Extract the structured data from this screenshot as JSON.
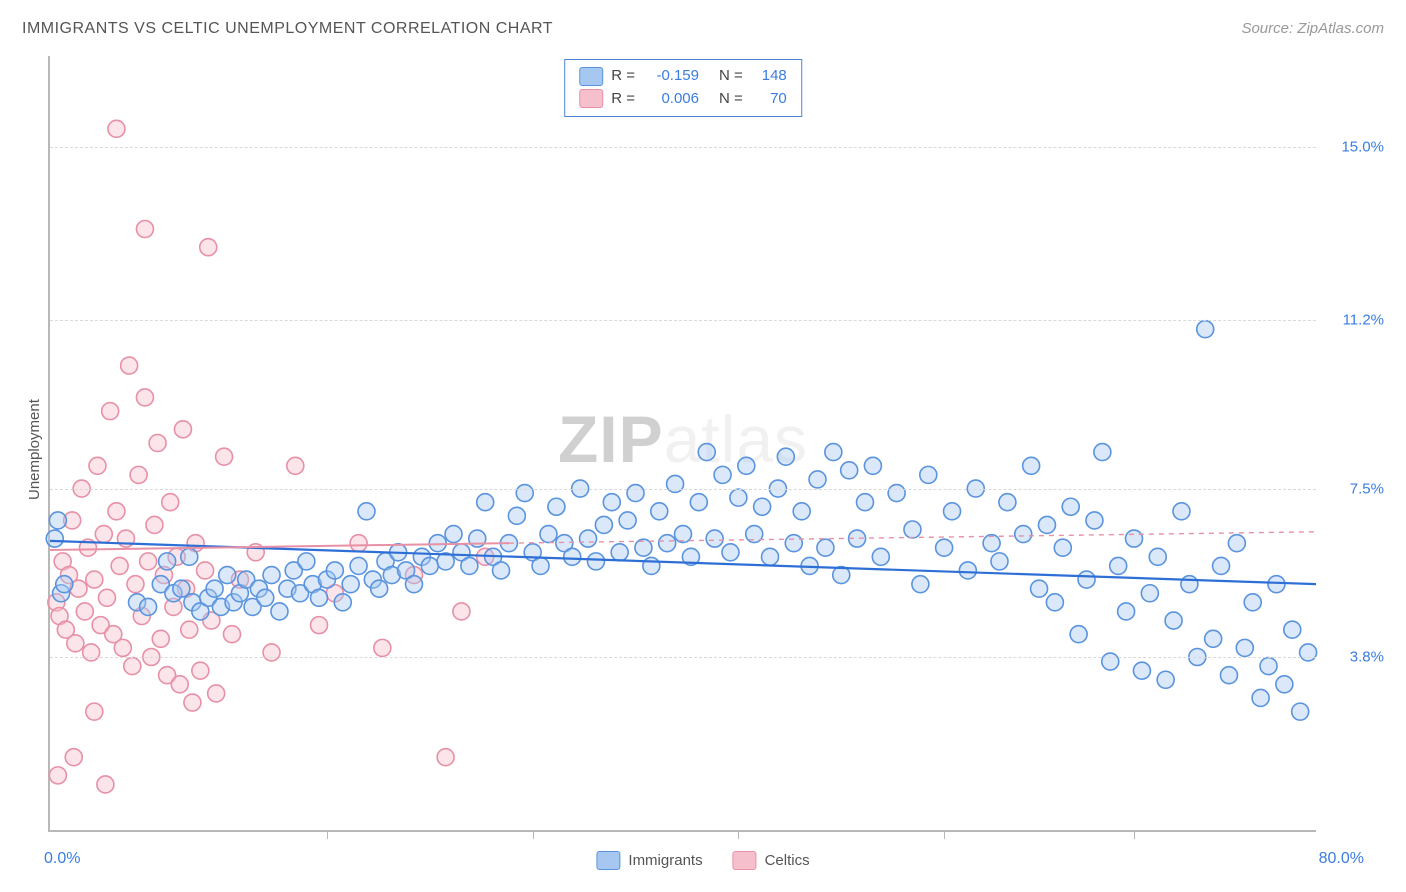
{
  "title": "IMMIGRANTS VS CELTIC UNEMPLOYMENT CORRELATION CHART",
  "source": "Source: ZipAtlas.com",
  "ylabel": "Unemployment",
  "watermark_zip": "ZIP",
  "watermark_atlas": "atlas",
  "chart": {
    "type": "scatter",
    "background_color": "#ffffff",
    "grid_color": "#d9d9d9",
    "axis_color": "#b8b8b8",
    "marker_radius": 8.5,
    "marker_stroke_width": 1.6,
    "marker_fill_opacity": 0.42,
    "xlim": [
      0,
      80
    ],
    "ylim": [
      0,
      17
    ],
    "x_min_label": "0.0%",
    "x_max_label": "80.0%",
    "xtick_values": [
      17.5,
      30.5,
      43.5,
      56.5,
      68.5
    ],
    "yticks": [
      {
        "v": 15.0,
        "label": "15.0%"
      },
      {
        "v": 11.2,
        "label": "11.2%"
      },
      {
        "v": 7.5,
        "label": "7.5%"
      },
      {
        "v": 3.8,
        "label": "3.8%"
      }
    ],
    "series": [
      {
        "name": "Immigrants",
        "color_fill": "#a6c8f0",
        "color_stroke": "#5b94de",
        "R": "-0.159",
        "N": "148",
        "trend": {
          "x1": 0,
          "y1": 6.35,
          "x2": 80,
          "y2": 5.4,
          "color": "#2e6fd6",
          "width": 2.2,
          "dash": ""
        },
        "points": [
          [
            0.3,
            6.4
          ],
          [
            0.5,
            6.8
          ],
          [
            0.7,
            5.2
          ],
          [
            0.9,
            5.4
          ],
          [
            5.5,
            5.0
          ],
          [
            6.2,
            4.9
          ],
          [
            7.0,
            5.4
          ],
          [
            7.4,
            5.9
          ],
          [
            7.8,
            5.2
          ],
          [
            8.3,
            5.3
          ],
          [
            8.8,
            6.0
          ],
          [
            9.0,
            5.0
          ],
          [
            9.5,
            4.8
          ],
          [
            10.0,
            5.1
          ],
          [
            10.4,
            5.3
          ],
          [
            10.8,
            4.9
          ],
          [
            11.2,
            5.6
          ],
          [
            11.6,
            5.0
          ],
          [
            12.0,
            5.2
          ],
          [
            12.4,
            5.5
          ],
          [
            12.8,
            4.9
          ],
          [
            13.2,
            5.3
          ],
          [
            13.6,
            5.1
          ],
          [
            14.0,
            5.6
          ],
          [
            14.5,
            4.8
          ],
          [
            15.0,
            5.3
          ],
          [
            15.4,
            5.7
          ],
          [
            15.8,
            5.2
          ],
          [
            16.2,
            5.9
          ],
          [
            16.6,
            5.4
          ],
          [
            17.0,
            5.1
          ],
          [
            17.5,
            5.5
          ],
          [
            18.0,
            5.7
          ],
          [
            18.5,
            5.0
          ],
          [
            19.0,
            5.4
          ],
          [
            19.5,
            5.8
          ],
          [
            20.0,
            7.0
          ],
          [
            20.4,
            5.5
          ],
          [
            20.8,
            5.3
          ],
          [
            21.2,
            5.9
          ],
          [
            21.6,
            5.6
          ],
          [
            22.0,
            6.1
          ],
          [
            22.5,
            5.7
          ],
          [
            23.0,
            5.4
          ],
          [
            23.5,
            6.0
          ],
          [
            24.0,
            5.8
          ],
          [
            24.5,
            6.3
          ],
          [
            25.0,
            5.9
          ],
          [
            25.5,
            6.5
          ],
          [
            26.0,
            6.1
          ],
          [
            26.5,
            5.8
          ],
          [
            27.0,
            6.4
          ],
          [
            27.5,
            7.2
          ],
          [
            28.0,
            6.0
          ],
          [
            28.5,
            5.7
          ],
          [
            29.0,
            6.3
          ],
          [
            29.5,
            6.9
          ],
          [
            30.0,
            7.4
          ],
          [
            30.5,
            6.1
          ],
          [
            31.0,
            5.8
          ],
          [
            31.5,
            6.5
          ],
          [
            32.0,
            7.1
          ],
          [
            32.5,
            6.3
          ],
          [
            33.0,
            6.0
          ],
          [
            33.5,
            7.5
          ],
          [
            34.0,
            6.4
          ],
          [
            34.5,
            5.9
          ],
          [
            35.0,
            6.7
          ],
          [
            35.5,
            7.2
          ],
          [
            36.0,
            6.1
          ],
          [
            36.5,
            6.8
          ],
          [
            37.0,
            7.4
          ],
          [
            37.5,
            6.2
          ],
          [
            38.0,
            5.8
          ],
          [
            38.5,
            7.0
          ],
          [
            39.0,
            6.3
          ],
          [
            39.5,
            7.6
          ],
          [
            40.0,
            6.5
          ],
          [
            40.5,
            6.0
          ],
          [
            41.0,
            7.2
          ],
          [
            41.5,
            8.3
          ],
          [
            42.0,
            6.4
          ],
          [
            42.5,
            7.8
          ],
          [
            43.0,
            6.1
          ],
          [
            43.5,
            7.3
          ],
          [
            44.0,
            8.0
          ],
          [
            44.5,
            6.5
          ],
          [
            45.0,
            7.1
          ],
          [
            45.5,
            6.0
          ],
          [
            46.0,
            7.5
          ],
          [
            46.5,
            8.2
          ],
          [
            47.0,
            6.3
          ],
          [
            47.5,
            7.0
          ],
          [
            48.0,
            5.8
          ],
          [
            48.5,
            7.7
          ],
          [
            49.0,
            6.2
          ],
          [
            49.5,
            8.3
          ],
          [
            50.0,
            5.6
          ],
          [
            50.5,
            7.9
          ],
          [
            51.0,
            6.4
          ],
          [
            51.5,
            7.2
          ],
          [
            52.0,
            8.0
          ],
          [
            52.5,
            6.0
          ],
          [
            53.5,
            7.4
          ],
          [
            54.5,
            6.6
          ],
          [
            55.0,
            5.4
          ],
          [
            55.5,
            7.8
          ],
          [
            56.5,
            6.2
          ],
          [
            57.0,
            7.0
          ],
          [
            58.0,
            5.7
          ],
          [
            58.5,
            7.5
          ],
          [
            59.5,
            6.3
          ],
          [
            60.0,
            5.9
          ],
          [
            60.5,
            7.2
          ],
          [
            61.5,
            6.5
          ],
          [
            62.0,
            8.0
          ],
          [
            62.5,
            5.3
          ],
          [
            63.0,
            6.7
          ],
          [
            63.5,
            5.0
          ],
          [
            64.0,
            6.2
          ],
          [
            64.5,
            7.1
          ],
          [
            65.0,
            4.3
          ],
          [
            65.5,
            5.5
          ],
          [
            66.0,
            6.8
          ],
          [
            66.5,
            8.3
          ],
          [
            67.0,
            3.7
          ],
          [
            67.5,
            5.8
          ],
          [
            68.0,
            4.8
          ],
          [
            68.5,
            6.4
          ],
          [
            69.0,
            3.5
          ],
          [
            69.5,
            5.2
          ],
          [
            70.0,
            6.0
          ],
          [
            70.5,
            3.3
          ],
          [
            71.0,
            4.6
          ],
          [
            71.5,
            7.0
          ],
          [
            72.0,
            5.4
          ],
          [
            72.5,
            3.8
          ],
          [
            73.0,
            11.0
          ],
          [
            73.5,
            4.2
          ],
          [
            74.0,
            5.8
          ],
          [
            74.5,
            3.4
          ],
          [
            75.0,
            6.3
          ],
          [
            75.5,
            4.0
          ],
          [
            76.0,
            5.0
          ],
          [
            76.5,
            2.9
          ],
          [
            77.0,
            3.6
          ],
          [
            77.5,
            5.4
          ],
          [
            78.0,
            3.2
          ],
          [
            78.5,
            4.4
          ],
          [
            79.0,
            2.6
          ],
          [
            79.5,
            3.9
          ]
        ]
      },
      {
        "name": "Celtics",
        "color_fill": "#f5c0cc",
        "color_stroke": "#e890a6",
        "R": "0.006",
        "N": "70",
        "trend_solid": {
          "x1": 0,
          "y1": 6.15,
          "x2": 29,
          "y2": 6.3,
          "color": "#e890a6",
          "width": 2.0,
          "dash": ""
        },
        "trend_dash": {
          "x1": 29,
          "y1": 6.3,
          "x2": 80,
          "y2": 6.55,
          "color": "#e890a6",
          "width": 1.4,
          "dash": "5,5"
        },
        "points": [
          [
            0.4,
            5.0
          ],
          [
            0.6,
            4.7
          ],
          [
            0.8,
            5.9
          ],
          [
            1.0,
            4.4
          ],
          [
            1.2,
            5.6
          ],
          [
            1.4,
            6.8
          ],
          [
            1.6,
            4.1
          ],
          [
            1.8,
            5.3
          ],
          [
            2.0,
            7.5
          ],
          [
            2.2,
            4.8
          ],
          [
            2.4,
            6.2
          ],
          [
            2.6,
            3.9
          ],
          [
            2.8,
            5.5
          ],
          [
            3.0,
            8.0
          ],
          [
            3.2,
            4.5
          ],
          [
            3.4,
            6.5
          ],
          [
            3.6,
            5.1
          ],
          [
            3.8,
            9.2
          ],
          [
            4.0,
            4.3
          ],
          [
            4.2,
            7.0
          ],
          [
            4.2,
            15.4
          ],
          [
            4.4,
            5.8
          ],
          [
            4.6,
            4.0
          ],
          [
            4.8,
            6.4
          ],
          [
            5.0,
            10.2
          ],
          [
            5.2,
            3.6
          ],
          [
            5.4,
            5.4
          ],
          [
            5.6,
            7.8
          ],
          [
            5.8,
            4.7
          ],
          [
            6.0,
            9.5
          ],
          [
            6.0,
            13.2
          ],
          [
            6.2,
            5.9
          ],
          [
            6.4,
            3.8
          ],
          [
            6.6,
            6.7
          ],
          [
            6.8,
            8.5
          ],
          [
            7.0,
            4.2
          ],
          [
            7.2,
            5.6
          ],
          [
            7.4,
            3.4
          ],
          [
            7.6,
            7.2
          ],
          [
            7.8,
            4.9
          ],
          [
            8.0,
            6.0
          ],
          [
            8.2,
            3.2
          ],
          [
            8.4,
            8.8
          ],
          [
            8.6,
            5.3
          ],
          [
            8.8,
            4.4
          ],
          [
            9.0,
            2.8
          ],
          [
            9.2,
            6.3
          ],
          [
            9.5,
            3.5
          ],
          [
            9.8,
            5.7
          ],
          [
            10.0,
            12.8
          ],
          [
            10.2,
            4.6
          ],
          [
            10.5,
            3.0
          ],
          [
            11.0,
            8.2
          ],
          [
            11.5,
            4.3
          ],
          [
            12.0,
            5.5
          ],
          [
            13.0,
            6.1
          ],
          [
            14.0,
            3.9
          ],
          [
            15.5,
            8.0
          ],
          [
            17.0,
            4.5
          ],
          [
            18.0,
            5.2
          ],
          [
            19.5,
            6.3
          ],
          [
            21.0,
            4.0
          ],
          [
            23.0,
            5.6
          ],
          [
            25.0,
            1.6
          ],
          [
            26.0,
            4.8
          ],
          [
            27.5,
            6.0
          ],
          [
            0.5,
            1.2
          ],
          [
            1.5,
            1.6
          ],
          [
            2.8,
            2.6
          ],
          [
            3.5,
            1.0
          ]
        ]
      }
    ]
  },
  "bottom_legend": [
    {
      "swatch": "sw-blue",
      "label": "Immigrants"
    },
    {
      "swatch": "sw-pink",
      "label": "Celtics"
    }
  ]
}
